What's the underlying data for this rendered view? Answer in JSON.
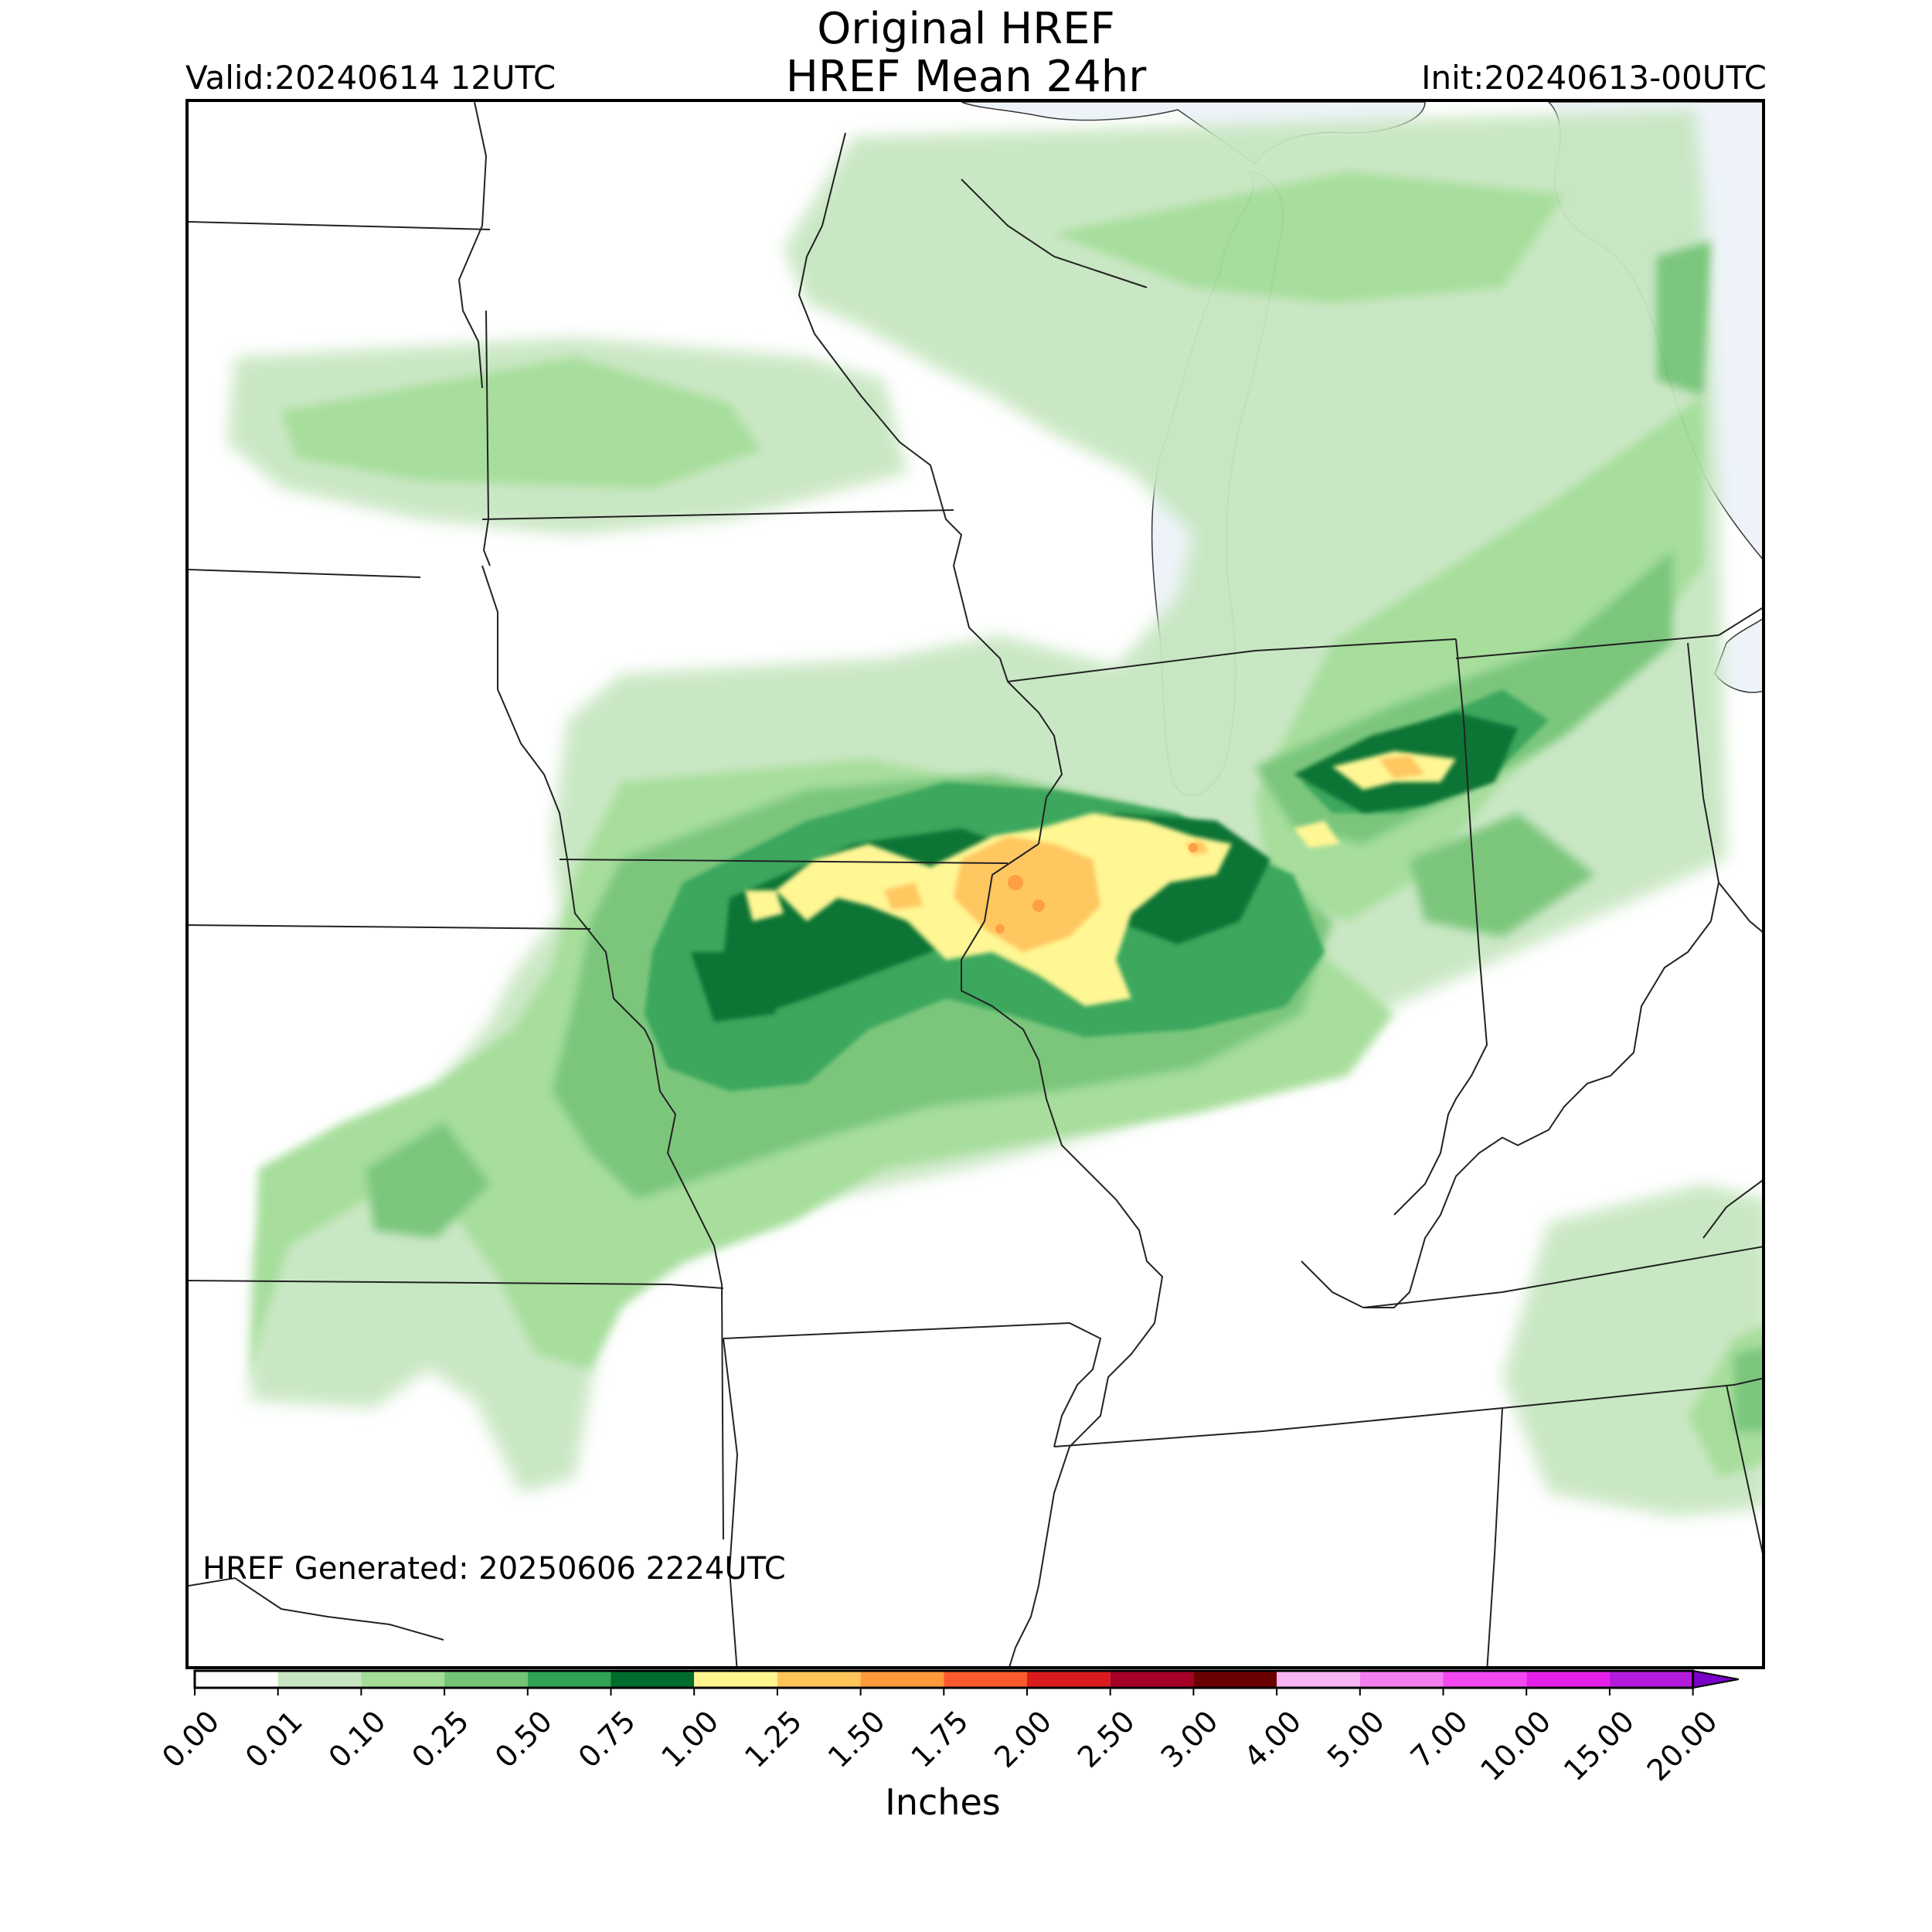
{
  "header": {
    "title_line1": "Original HREF",
    "title_line2": "HREF Mean 24hr",
    "valid": "Valid:20240614 12UTC",
    "init": "Init:20240613-00UTC"
  },
  "map": {
    "generated_note": "HREF Generated: 20250606 2224UTC",
    "water_color": "#eef3f9",
    "border_color": "#222222"
  },
  "colorbar": {
    "unit": "Inches",
    "ticks": [
      "0.00",
      "0.01",
      "0.10",
      "0.25",
      "0.50",
      "0.75",
      "1.00",
      "1.25",
      "1.50",
      "1.75",
      "2.00",
      "2.50",
      "3.00",
      "4.00",
      "5.00",
      "7.00",
      "10.00",
      "15.00",
      "20.00"
    ],
    "colors": [
      "#ffffff",
      "#c7e6c1",
      "#a3dd97",
      "#74c476",
      "#31a354",
      "#006d2c",
      "#fff68f",
      "#ffc559",
      "#fe9a3a",
      "#fb5a2c",
      "#da1b1d",
      "#a50026",
      "#6b0000",
      "#f9b4f4",
      "#f47ef0",
      "#f348f0",
      "#e41fe9",
      "#b41bdc",
      "#7a00c8"
    ],
    "extend": "max"
  }
}
